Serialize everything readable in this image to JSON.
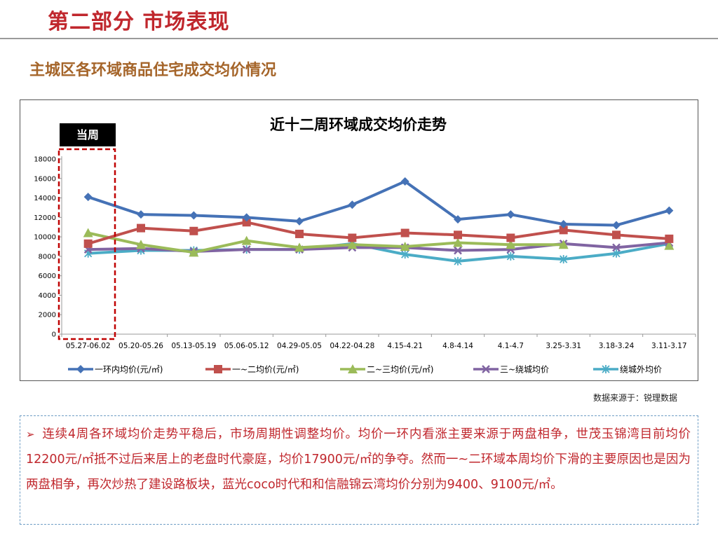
{
  "header": {
    "page_title": "第二部分 市场表现",
    "section_title": "主城区各环域商品住宅成交均价情况"
  },
  "chart_data": {
    "type": "line",
    "title": "近十二周环域成交均价走势",
    "highlight_label": "当周",
    "categories": [
      "05.27-06.02",
      "05.20-05.26",
      "05.13-05.19",
      "05.06-05.12",
      "04.29-05.05",
      "04.22-04.28",
      "4.15-4.21",
      "4.8-4.14",
      "4.1-4.7",
      "3.25-3.31",
      "3.18-3.24",
      "3.11-3.17"
    ],
    "ylim": [
      0,
      18000
    ],
    "yticks": [
      0,
      2000,
      4000,
      6000,
      8000,
      10000,
      12000,
      14000,
      16000,
      18000
    ],
    "grid": false,
    "legend_position": "bottom",
    "series": [
      {
        "name": "一环内均价(元/㎡)",
        "color": "#4572b6",
        "marker": "diamond",
        "values": [
          14100,
          12300,
          12200,
          12000,
          11600,
          13300,
          15700,
          11800,
          12300,
          11300,
          11200,
          12700
        ]
      },
      {
        "name": "一~二均价(元/㎡)",
        "color": "#c0504d",
        "marker": "square",
        "values": [
          9300,
          10900,
          10600,
          11500,
          10300,
          9900,
          10400,
          10200,
          9900,
          10700,
          10200,
          9800
        ]
      },
      {
        "name": "二~三均价(元/㎡)",
        "color": "#9bbb59",
        "marker": "triangle",
        "values": [
          10400,
          9200,
          8400,
          9600,
          8900,
          9200,
          9000,
          9400,
          9200,
          9200,
          null,
          9100
        ]
      },
      {
        "name": "三~绕城均价",
        "color": "#8064a2",
        "marker": "x",
        "values": [
          8700,
          8800,
          8500,
          8700,
          8700,
          8900,
          8900,
          8600,
          8700,
          9300,
          8900,
          9400
        ]
      },
      {
        "name": "绕城外均价",
        "color": "#4bacc6",
        "marker": "star",
        "values": [
          8300,
          8600,
          8600,
          8700,
          8700,
          9300,
          8200,
          7500,
          8000,
          7700,
          8300,
          9300
        ]
      }
    ]
  },
  "source_note": "数据来源于：锐理数据",
  "analysis": {
    "bullet_icon": "arrow-bullet-icon",
    "text": "连续4周各环域均价走势平稳后，市场周期性调整均价。均价一环内看涨主要来源于两盘相争，世茂玉锦湾目前均价12200元/㎡抵不过后来居上的老盘时代豪庭，均价17900元/㎡的争夺。然而一~二环域本周均价下滑的主要原因也是因为两盘相争，再次炒热了建设路板块，蓝光coco时代和和信融锦云湾均价分别为9400、9100元/㎡。"
  }
}
